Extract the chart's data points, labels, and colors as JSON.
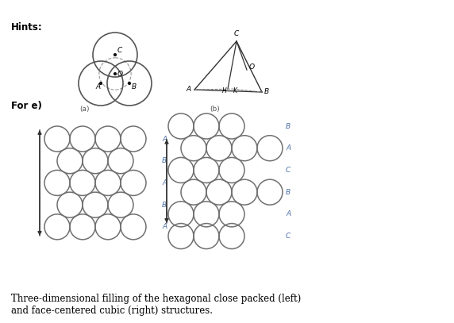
{
  "hints_text": "Hints:",
  "for_e_text": "For e)",
  "label_a": "(a)",
  "label_b": "(b)",
  "caption": "Three-dimensional filling of the hexagonal close packed (left)\nand face-centered cubic (right) structures.",
  "background_color": "#ffffff",
  "circle_color": "#808080",
  "text_color_blue": "#4a6fa5",
  "label_fontsize": 6.5,
  "hints_fontsize": 8.5,
  "caption_fontsize": 8.5,
  "hcp_labels": [
    "A",
    "B",
    "A",
    "B",
    "A"
  ],
  "fcc_labels": [
    "B",
    "A",
    "C",
    "B",
    "A",
    "C"
  ],
  "hcp_rows": [
    [
      4,
      0
    ],
    [
      3,
      1
    ],
    [
      4,
      0
    ],
    [
      3,
      1
    ],
    [
      4,
      0
    ]
  ],
  "fcc_rows": [
    [
      3,
      0
    ],
    [
      4,
      1
    ],
    [
      3,
      0
    ],
    [
      4,
      1
    ],
    [
      3,
      0
    ],
    [
      3,
      0
    ]
  ]
}
